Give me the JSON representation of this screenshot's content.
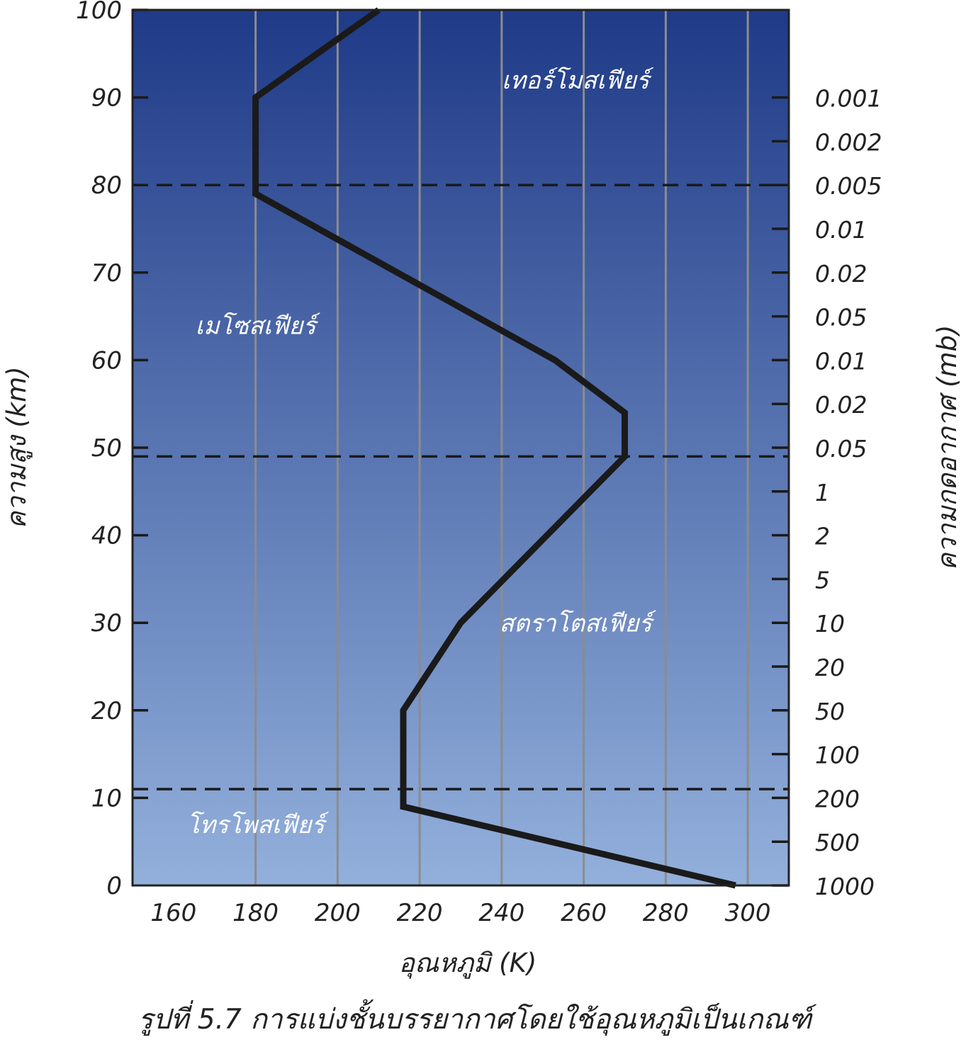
{
  "chart_data": {
    "type": "line",
    "xlabel": "อุณหภูมิ  (K)",
    "ylabel": "ความสูง  (km)",
    "y2label": "ความกดอากาศ  (mb)",
    "xlim": [
      150,
      310
    ],
    "ylim": [
      0,
      100
    ],
    "xticks": [
      160,
      180,
      200,
      220,
      240,
      260,
      280,
      300
    ],
    "yticks": [
      0,
      10,
      20,
      30,
      40,
      50,
      60,
      70,
      80,
      90,
      100
    ],
    "vertical_grid": [
      180,
      200,
      220,
      240,
      260,
      280,
      300
    ],
    "pressure_ticks": [
      {
        "label": "0.001",
        "y": 90
      },
      {
        "label": "0.002",
        "y": 85
      },
      {
        "label": "0.005",
        "y": 80
      },
      {
        "label": "0.01",
        "y": 75
      },
      {
        "label": "0.02",
        "y": 70
      },
      {
        "label": "0.05",
        "y": 65
      },
      {
        "label": "0.01",
        "y": 60
      },
      {
        "label": "0.02",
        "y": 55
      },
      {
        "label": "0.05",
        "y": 50
      },
      {
        "label": "1",
        "y": 45
      },
      {
        "label": "2",
        "y": 40
      },
      {
        "label": "5",
        "y": 35
      },
      {
        "label": "10",
        "y": 30
      },
      {
        "label": "20",
        "y": 25
      },
      {
        "label": "50",
        "y": 20
      },
      {
        "label": "100",
        "y": 15
      },
      {
        "label": "200",
        "y": 10
      },
      {
        "label": "500",
        "y": 5
      },
      {
        "label": "1000",
        "y": 0
      }
    ],
    "series": [
      {
        "points": [
          [
            297,
            0
          ],
          [
            216,
            9
          ],
          [
            216,
            20
          ],
          [
            230,
            30
          ],
          [
            270,
            49
          ],
          [
            270,
            54
          ],
          [
            253,
            60
          ],
          [
            180,
            79
          ],
          [
            180,
            90
          ],
          [
            210,
            100
          ]
        ]
      }
    ],
    "boundaries": [
      11,
      49,
      80
    ],
    "layers": [
      {
        "label": "โทรโพสเฟียร์",
        "x": 180,
        "y": 6
      },
      {
        "label": "สตราโตสเฟียร์",
        "x": 258,
        "y": 29
      },
      {
        "label": "เมโซสเฟียร์",
        "x": 180,
        "y": 63
      },
      {
        "label": "เทอร์โมสเฟียร์",
        "x": 258,
        "y": 91
      }
    ],
    "colors": {
      "top": "#1f3a87",
      "bottom": "#93b0dc",
      "line": "#1a1a1a",
      "grid": "#8c8c8c"
    }
  },
  "caption": "รูปที่ 5.7 การแบ่งชั้นบรรยากาศโดยใช้อุณหภูมิเป็นเกณฑ์"
}
